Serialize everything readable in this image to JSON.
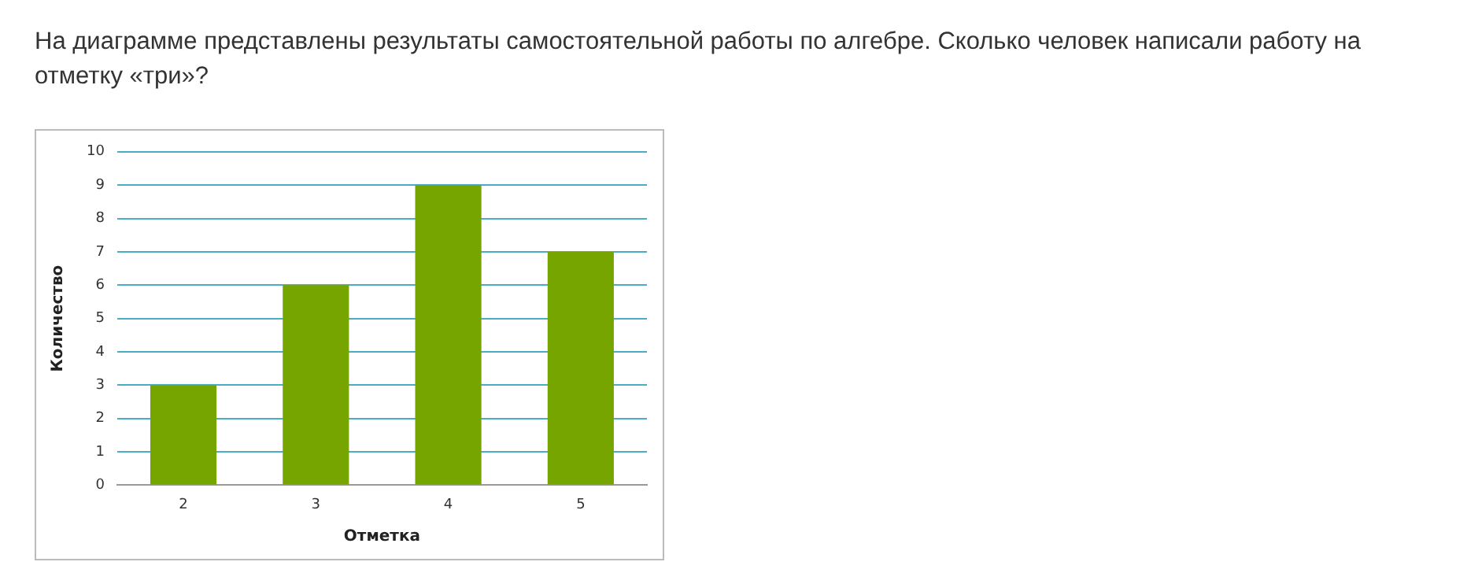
{
  "chart_data": {
    "type": "bar",
    "title": "На диаграмме представлены результаты самостоятельной работы по алгебре. Сколько человек написали работу на отметку «три»?",
    "xlabel": "Отметка",
    "ylabel": "Количество",
    "categories": [
      "2",
      "3",
      "4",
      "5"
    ],
    "values": [
      3,
      6,
      9,
      7
    ],
    "color": "#76a500",
    "ylim": [
      0,
      10
    ],
    "yticks": [
      0,
      1,
      2,
      3,
      4,
      5,
      6,
      7,
      8,
      9,
      10
    ],
    "grid": "y",
    "legend": false
  }
}
